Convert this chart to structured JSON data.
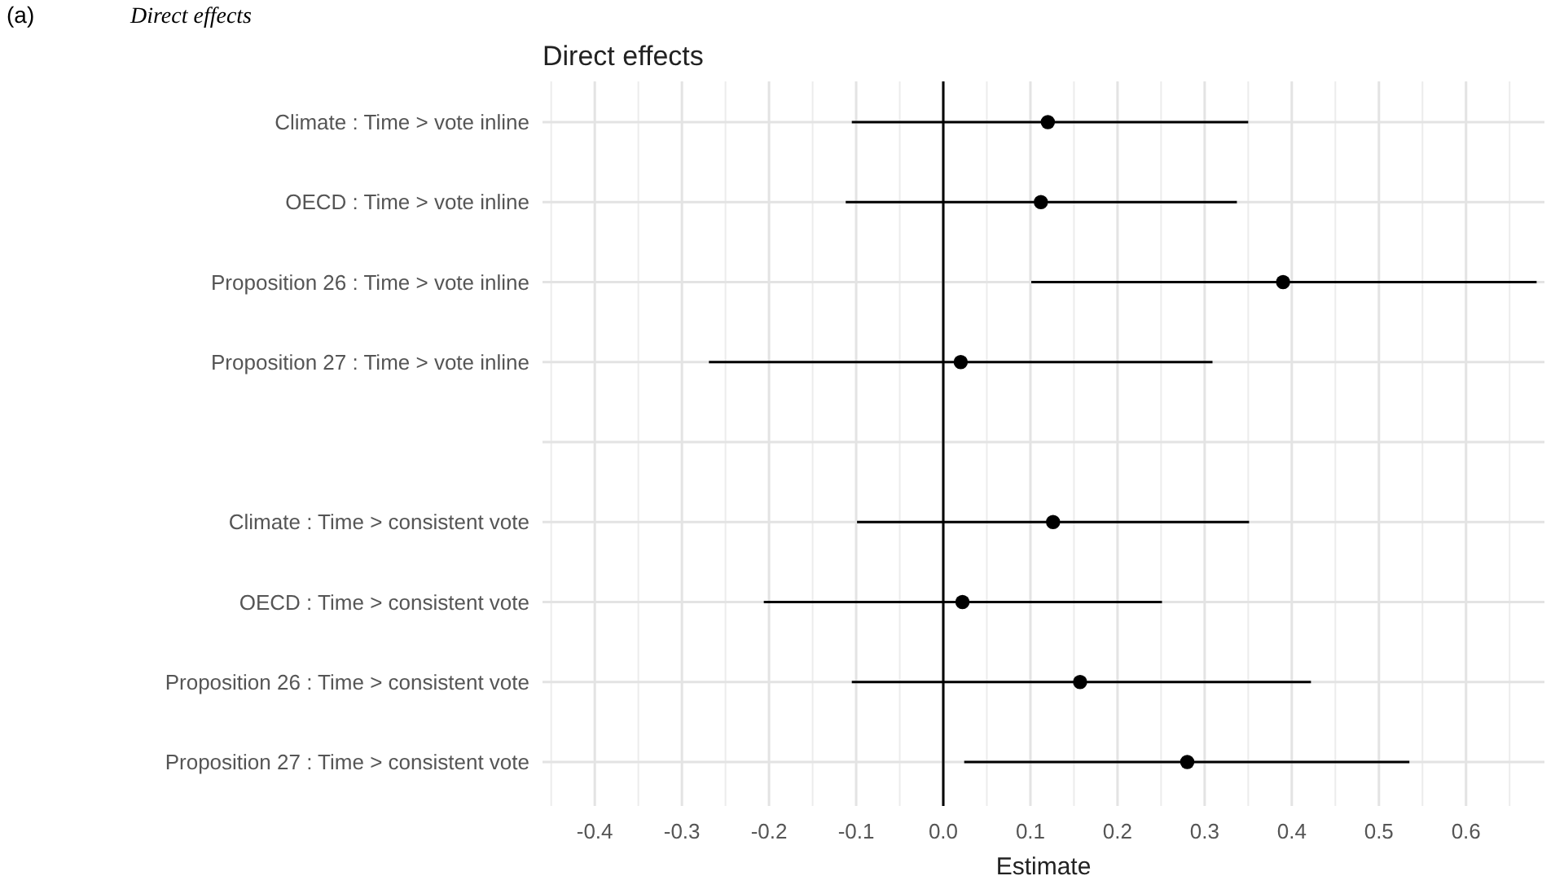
{
  "chart_data": {
    "type": "scatter",
    "orientation": "horizontal",
    "title": "Direct effects",
    "xlabel": "Estimate",
    "annotations": [
      "(a)",
      "Direct effects"
    ],
    "categories": [
      "Climate : Time > vote inline",
      "OECD : Time > vote inline",
      "Proposition 26 : Time > vote inline",
      "Proposition 27 : Time > vote inline",
      null,
      "Climate : Time > consistent vote",
      "OECD : Time > consistent vote",
      "Proposition 26 : Time > consistent vote",
      "Proposition 27 : Time > consistent vote"
    ],
    "values": [
      0.12,
      0.112,
      0.39,
      0.02,
      null,
      0.126,
      0.022,
      0.157,
      0.28
    ],
    "errors": [
      [
        -0.105,
        0.35
      ],
      [
        -0.112,
        0.337
      ],
      [
        0.101,
        0.681
      ],
      [
        -0.269,
        0.309
      ],
      null,
      [
        -0.099,
        0.351
      ],
      [
        -0.206,
        0.251
      ],
      [
        -0.105,
        0.422
      ],
      [
        0.024,
        0.535
      ]
    ],
    "color": "#000000",
    "marker": "circle",
    "xlim": [
      -0.46,
      0.69
    ],
    "xticks": [
      -0.4,
      -0.3,
      -0.2,
      -0.1,
      {
        "value": 0,
        "label": "0.0"
      },
      0.1,
      0.2,
      0.3,
      0.4,
      0.5,
      0.6
    ],
    "ref_lines": [
      {
        "axis": "x",
        "value": 0,
        "color": "#000000"
      }
    ],
    "grid": true
  }
}
